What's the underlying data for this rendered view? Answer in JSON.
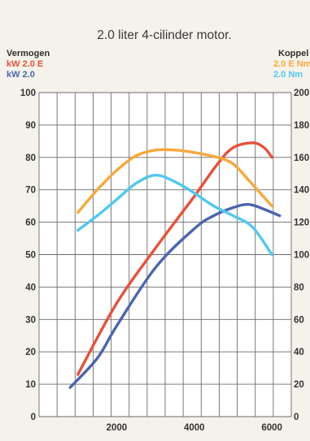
{
  "chart_data": {
    "type": "line",
    "title": "2.0 liter 4-cilinder motor.",
    "left_axis": {
      "label": "Vermogen",
      "range": [
        0,
        100
      ],
      "ticks": [
        0,
        10,
        20,
        30,
        40,
        50,
        60,
        70,
        80,
        90,
        100
      ]
    },
    "right_axis": {
      "label": "Koppel",
      "range": [
        0,
        200
      ],
      "ticks": [
        0,
        20,
        40,
        60,
        80,
        100,
        120,
        140,
        160,
        180,
        200
      ],
      "tick_labels": [
        "0",
        "20",
        "40",
        "60",
        "80",
        "100",
        "120",
        "140",
        "160",
        "180",
        "200"
      ]
    },
    "x_axis": {
      "range": [
        0,
        6500
      ],
      "ticks": [
        2000,
        4000,
        6000
      ]
    },
    "grid": true,
    "series": [
      {
        "name": "kW 2.0 E",
        "axis": "left",
        "color": "#e8503a",
        "points": [
          [
            1000,
            13
          ],
          [
            2000,
            35
          ],
          [
            3000,
            52
          ],
          [
            4000,
            68
          ],
          [
            4600,
            78
          ],
          [
            5000,
            83
          ],
          [
            5500,
            84.5
          ],
          [
            5800,
            83
          ],
          [
            6000,
            80
          ]
        ]
      },
      {
        "name": "kW 2.0",
        "axis": "left",
        "color": "#4a66b0",
        "points": [
          [
            800,
            9
          ],
          [
            1500,
            18
          ],
          [
            2000,
            28
          ],
          [
            3000,
            46
          ],
          [
            4000,
            58
          ],
          [
            4500,
            62
          ],
          [
            5000,
            64.5
          ],
          [
            5400,
            65.5
          ],
          [
            5800,
            64
          ],
          [
            6200,
            62
          ]
        ]
      },
      {
        "name": "2.0 E Nm",
        "axis": "right",
        "color": "#f7a83a",
        "points": [
          [
            1000,
            126
          ],
          [
            1500,
            140
          ],
          [
            2000,
            152
          ],
          [
            2500,
            161
          ],
          [
            3000,
            164.5
          ],
          [
            3500,
            164.5
          ],
          [
            4000,
            163
          ],
          [
            4600,
            160
          ],
          [
            5000,
            156
          ],
          [
            5400,
            146
          ],
          [
            6000,
            130
          ]
        ]
      },
      {
        "name": "2.0 Nm",
        "axis": "right",
        "color": "#4fc8f0",
        "points": [
          [
            1000,
            115
          ],
          [
            1500,
            124
          ],
          [
            2000,
            134
          ],
          [
            2500,
            144
          ],
          [
            3000,
            149
          ],
          [
            3500,
            145
          ],
          [
            4000,
            138
          ],
          [
            4500,
            130
          ],
          [
            5000,
            124
          ],
          [
            5500,
            117
          ],
          [
            6000,
            100
          ]
        ]
      }
    ],
    "legend": {
      "left": [
        "kW 2.0 E",
        "kW 2.0"
      ],
      "right": [
        "2.0 E Nm",
        "2.0 Nm"
      ]
    }
  }
}
